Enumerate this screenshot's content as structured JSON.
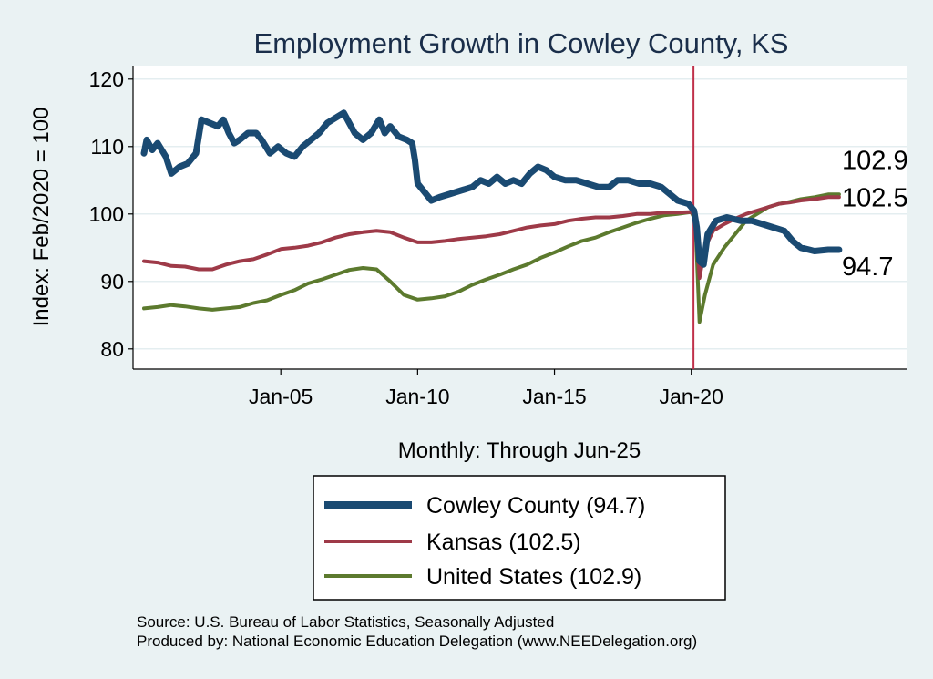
{
  "chart_data": {
    "type": "line",
    "title": "Employment Growth in Cowley  County, KS",
    "xlabel": "Monthly: Through Jun-25",
    "ylabel": "Index: Feb/2020 = 100",
    "ylim": [
      77,
      122
    ],
    "xlim": [
      1999.6,
      2027.9
    ],
    "yticks": [
      80,
      90,
      100,
      110,
      120
    ],
    "xticks": [
      {
        "value": 2005,
        "label": "Jan-05"
      },
      {
        "value": 2010,
        "label": "Jan-10"
      },
      {
        "value": 2015,
        "label": "Jan-15"
      },
      {
        "value": 2020,
        "label": "Jan-20"
      }
    ],
    "reference_line_x": 2020.08,
    "grid": true,
    "series": [
      {
        "name": "Cowley  County",
        "legend_label": "Cowley  County (94.7)",
        "end_label": "94.7",
        "color": "#1a4a72",
        "points": [
          [
            2000.0,
            109
          ],
          [
            2000.1,
            111
          ],
          [
            2000.3,
            109.5
          ],
          [
            2000.5,
            110.5
          ],
          [
            2000.8,
            108.5
          ],
          [
            2001.0,
            106
          ],
          [
            2001.3,
            107
          ],
          [
            2001.6,
            107.5
          ],
          [
            2001.9,
            109
          ],
          [
            2002.1,
            114
          ],
          [
            2002.4,
            113.5
          ],
          [
            2002.7,
            113
          ],
          [
            2002.9,
            114
          ],
          [
            2003.1,
            112
          ],
          [
            2003.3,
            110.5
          ],
          [
            2003.5,
            111
          ],
          [
            2003.8,
            112
          ],
          [
            2004.1,
            112
          ],
          [
            2004.3,
            111
          ],
          [
            2004.6,
            109
          ],
          [
            2004.9,
            110
          ],
          [
            2005.2,
            109
          ],
          [
            2005.5,
            108.5
          ],
          [
            2005.8,
            110
          ],
          [
            2006.1,
            111
          ],
          [
            2006.4,
            112
          ],
          [
            2006.7,
            113.5
          ],
          [
            2006.9,
            114
          ],
          [
            2007.1,
            114.5
          ],
          [
            2007.3,
            115
          ],
          [
            2007.5,
            113.5
          ],
          [
            2007.7,
            112
          ],
          [
            2008.0,
            111
          ],
          [
            2008.3,
            112
          ],
          [
            2008.6,
            114
          ],
          [
            2008.8,
            112
          ],
          [
            2009.0,
            113
          ],
          [
            2009.3,
            111.5
          ],
          [
            2009.6,
            111
          ],
          [
            2009.8,
            110.5
          ],
          [
            2009.9,
            108
          ],
          [
            2010.0,
            104.5
          ],
          [
            2010.3,
            103
          ],
          [
            2010.5,
            102
          ],
          [
            2010.8,
            102.5
          ],
          [
            2011.2,
            103
          ],
          [
            2011.6,
            103.5
          ],
          [
            2012.0,
            104
          ],
          [
            2012.3,
            105
          ],
          [
            2012.6,
            104.5
          ],
          [
            2012.9,
            105.5
          ],
          [
            2013.2,
            104.5
          ],
          [
            2013.5,
            105
          ],
          [
            2013.8,
            104.5
          ],
          [
            2014.1,
            106
          ],
          [
            2014.4,
            107
          ],
          [
            2014.7,
            106.5
          ],
          [
            2015.0,
            105.5
          ],
          [
            2015.4,
            105
          ],
          [
            2015.8,
            105
          ],
          [
            2016.2,
            104.5
          ],
          [
            2016.6,
            104
          ],
          [
            2017.0,
            104
          ],
          [
            2017.3,
            105
          ],
          [
            2017.7,
            105
          ],
          [
            2018.1,
            104.5
          ],
          [
            2018.5,
            104.5
          ],
          [
            2018.9,
            104
          ],
          [
            2019.2,
            103
          ],
          [
            2019.5,
            102
          ],
          [
            2019.9,
            101.5
          ],
          [
            2020.1,
            100.5
          ],
          [
            2020.2,
            98
          ],
          [
            2020.3,
            93
          ],
          [
            2020.45,
            92.5
          ],
          [
            2020.6,
            97
          ],
          [
            2020.9,
            99
          ],
          [
            2021.3,
            99.5
          ],
          [
            2021.8,
            99
          ],
          [
            2022.2,
            99
          ],
          [
            2022.6,
            98.5
          ],
          [
            2023.0,
            98
          ],
          [
            2023.4,
            97.5
          ],
          [
            2023.7,
            96
          ],
          [
            2024.0,
            95
          ],
          [
            2024.5,
            94.5
          ],
          [
            2025.0,
            94.7
          ],
          [
            2025.4,
            94.7
          ]
        ]
      },
      {
        "name": "Kansas",
        "legend_label": "Kansas (102.5)",
        "end_label": "102.5",
        "color": "#9e3a48",
        "points": [
          [
            2000.0,
            93
          ],
          [
            2000.5,
            92.8
          ],
          [
            2001.0,
            92.3
          ],
          [
            2001.5,
            92.2
          ],
          [
            2002.0,
            91.8
          ],
          [
            2002.5,
            91.8
          ],
          [
            2003.0,
            92.5
          ],
          [
            2003.5,
            93
          ],
          [
            2004.0,
            93.3
          ],
          [
            2004.5,
            94
          ],
          [
            2005.0,
            94.8
          ],
          [
            2005.5,
            95
          ],
          [
            2006.0,
            95.3
          ],
          [
            2006.5,
            95.8
          ],
          [
            2007.0,
            96.5
          ],
          [
            2007.5,
            97
          ],
          [
            2008.0,
            97.3
          ],
          [
            2008.5,
            97.5
          ],
          [
            2009.0,
            97.3
          ],
          [
            2009.5,
            96.5
          ],
          [
            2010.0,
            95.8
          ],
          [
            2010.5,
            95.8
          ],
          [
            2011.0,
            96
          ],
          [
            2011.5,
            96.3
          ],
          [
            2012.0,
            96.5
          ],
          [
            2012.5,
            96.7
          ],
          [
            2013.0,
            97
          ],
          [
            2013.5,
            97.5
          ],
          [
            2014.0,
            98
          ],
          [
            2014.5,
            98.3
          ],
          [
            2015.0,
            98.5
          ],
          [
            2015.5,
            99
          ],
          [
            2016.0,
            99.3
          ],
          [
            2016.5,
            99.5
          ],
          [
            2017.0,
            99.5
          ],
          [
            2017.5,
            99.7
          ],
          [
            2018.0,
            100
          ],
          [
            2018.5,
            100
          ],
          [
            2019.0,
            100.2
          ],
          [
            2019.5,
            100.2
          ],
          [
            2020.0,
            100.3
          ],
          [
            2020.15,
            99.5
          ],
          [
            2020.3,
            90.5
          ],
          [
            2020.5,
            95
          ],
          [
            2020.8,
            97.5
          ],
          [
            2021.2,
            98.5
          ],
          [
            2021.6,
            99.3
          ],
          [
            2022.0,
            100
          ],
          [
            2022.4,
            100.5
          ],
          [
            2022.8,
            101
          ],
          [
            2023.2,
            101.5
          ],
          [
            2023.6,
            101.7
          ],
          [
            2024.0,
            102
          ],
          [
            2024.5,
            102.2
          ],
          [
            2025.0,
            102.5
          ],
          [
            2025.4,
            102.5
          ]
        ]
      },
      {
        "name": "United States",
        "legend_label": "United States (102.9)",
        "end_label": "102.9",
        "color": "#5c7a2e",
        "points": [
          [
            2000.0,
            86
          ],
          [
            2000.5,
            86.2
          ],
          [
            2001.0,
            86.5
          ],
          [
            2001.5,
            86.3
          ],
          [
            2002.0,
            86
          ],
          [
            2002.5,
            85.8
          ],
          [
            2003.0,
            86
          ],
          [
            2003.5,
            86.2
          ],
          [
            2004.0,
            86.8
          ],
          [
            2004.5,
            87.2
          ],
          [
            2005.0,
            88
          ],
          [
            2005.5,
            88.7
          ],
          [
            2006.0,
            89.7
          ],
          [
            2006.5,
            90.3
          ],
          [
            2007.0,
            91
          ],
          [
            2007.5,
            91.7
          ],
          [
            2008.0,
            92
          ],
          [
            2008.5,
            91.8
          ],
          [
            2009.0,
            90
          ],
          [
            2009.5,
            88
          ],
          [
            2010.0,
            87.3
          ],
          [
            2010.5,
            87.5
          ],
          [
            2011.0,
            87.8
          ],
          [
            2011.5,
            88.5
          ],
          [
            2012.0,
            89.5
          ],
          [
            2012.5,
            90.3
          ],
          [
            2013.0,
            91
          ],
          [
            2013.5,
            91.8
          ],
          [
            2014.0,
            92.5
          ],
          [
            2014.5,
            93.5
          ],
          [
            2015.0,
            94.3
          ],
          [
            2015.5,
            95.2
          ],
          [
            2016.0,
            96
          ],
          [
            2016.5,
            96.5
          ],
          [
            2017.0,
            97.3
          ],
          [
            2017.5,
            98
          ],
          [
            2018.0,
            98.7
          ],
          [
            2018.5,
            99.3
          ],
          [
            2019.0,
            99.8
          ],
          [
            2019.5,
            100
          ],
          [
            2020.0,
            100.3
          ],
          [
            2020.15,
            99
          ],
          [
            2020.3,
            84
          ],
          [
            2020.5,
            88
          ],
          [
            2020.8,
            92.5
          ],
          [
            2021.2,
            95
          ],
          [
            2021.6,
            97
          ],
          [
            2022.0,
            99
          ],
          [
            2022.4,
            100
          ],
          [
            2022.8,
            101
          ],
          [
            2023.2,
            101.5
          ],
          [
            2023.6,
            101.8
          ],
          [
            2024.0,
            102.2
          ],
          [
            2024.5,
            102.5
          ],
          [
            2025.0,
            102.9
          ],
          [
            2025.4,
            102.9
          ]
        ]
      }
    ],
    "footnotes": [
      "Source: U.S. Bureau of Labor Statistics, Seasonally Adjusted",
      "Produced by: National Economic Education Delegation (www.NEEDelegation.org)"
    ]
  }
}
